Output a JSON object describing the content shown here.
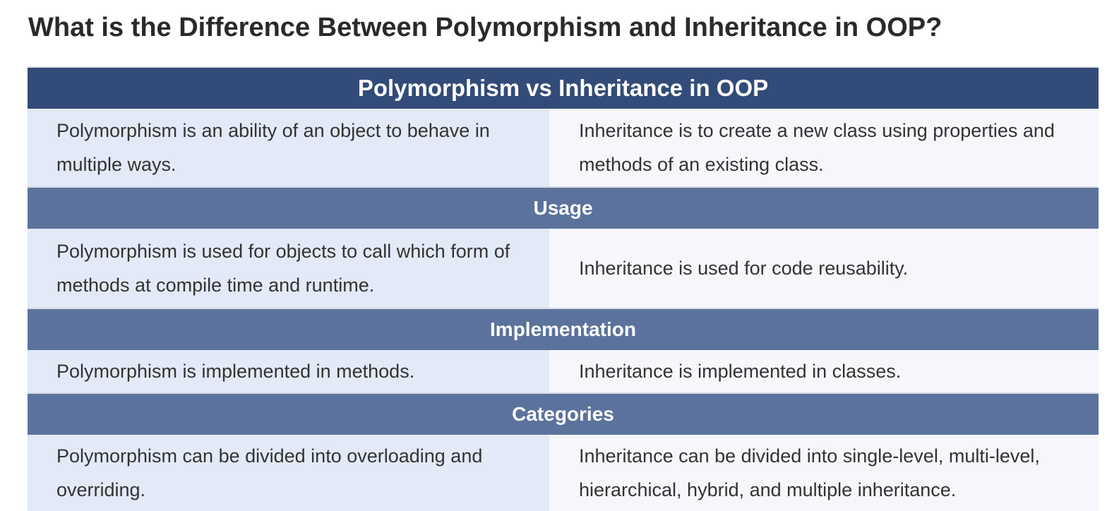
{
  "page": {
    "title": "What is the Difference Between Polymorphism and Inheritance in OOP?"
  },
  "table": {
    "header": "Polymorphism vs Inheritance in OOP",
    "definition": {
      "polymorphism": "Polymorphism is an ability of an object to behave in multiple ways.",
      "inheritance": "Inheritance is to create a new class using properties and methods of an existing class."
    },
    "sections": [
      {
        "title": "Usage",
        "polymorphism": "Polymorphism is used for objects to call which form of methods at compile time and runtime.",
        "inheritance": "Inheritance is used for code reusability."
      },
      {
        "title": "Implementation",
        "polymorphism": "Polymorphism is implemented in methods.",
        "inheritance": "Inheritance is implemented in classes."
      },
      {
        "title": "Categories",
        "polymorphism": "Polymorphism can be divided into overloading and overriding.",
        "inheritance": "Inheritance can be divided into single-level, multi-level, hierarchical, hybrid, and multiple inheritance."
      }
    ]
  },
  "colors": {
    "header_bg": "#324b78",
    "section_bg": "#5b739c",
    "left_cell_bg": "#e2e9f7",
    "right_cell_bg": "#f5f7fc",
    "title_text": "#2a2a2a",
    "body_text": "#333333"
  }
}
